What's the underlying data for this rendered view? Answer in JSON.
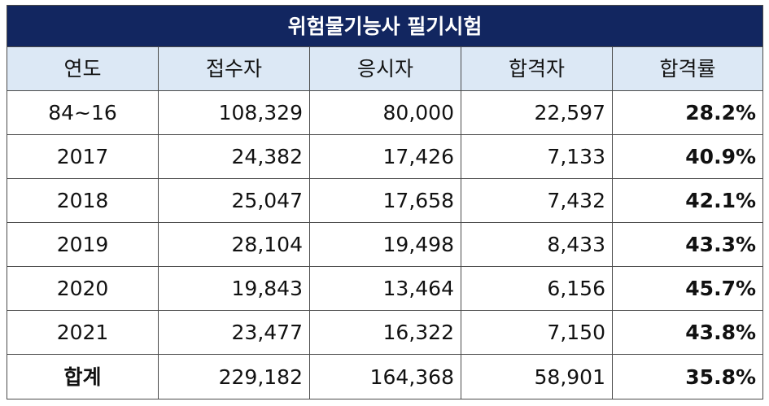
{
  "title": "위험물기능사 필기시험",
  "columns": [
    "연도",
    "접수자",
    "응시자",
    "합격자",
    "합격률"
  ],
  "rows": [
    {
      "year": "84~16",
      "applicants": "108,329",
      "examinees": "80,000",
      "passers": "22,597",
      "rate": "28.2%"
    },
    {
      "year": "2017",
      "applicants": "24,382",
      "examinees": "17,426",
      "passers": "7,133",
      "rate": "40.9%"
    },
    {
      "year": "2018",
      "applicants": "25,047",
      "examinees": "17,658",
      "passers": "7,432",
      "rate": "42.1%"
    },
    {
      "year": "2019",
      "applicants": "28,104",
      "examinees": "19,498",
      "passers": "8,433",
      "rate": "43.3%"
    },
    {
      "year": "2020",
      "applicants": "19,843",
      "examinees": "13,464",
      "passers": "6,156",
      "rate": "45.7%"
    },
    {
      "year": "2021",
      "applicants": "23,477",
      "examinees": "16,322",
      "passers": "7,150",
      "rate": "43.8%"
    }
  ],
  "total": {
    "label": "합계",
    "applicants": "229,182",
    "examinees": "164,368",
    "passers": "58,901",
    "rate": "35.8%"
  },
  "colors": {
    "title_bg": "#122660",
    "title_text": "#ffffff",
    "header_bg": "#dce8f5",
    "border": "#4a4a4a"
  }
}
